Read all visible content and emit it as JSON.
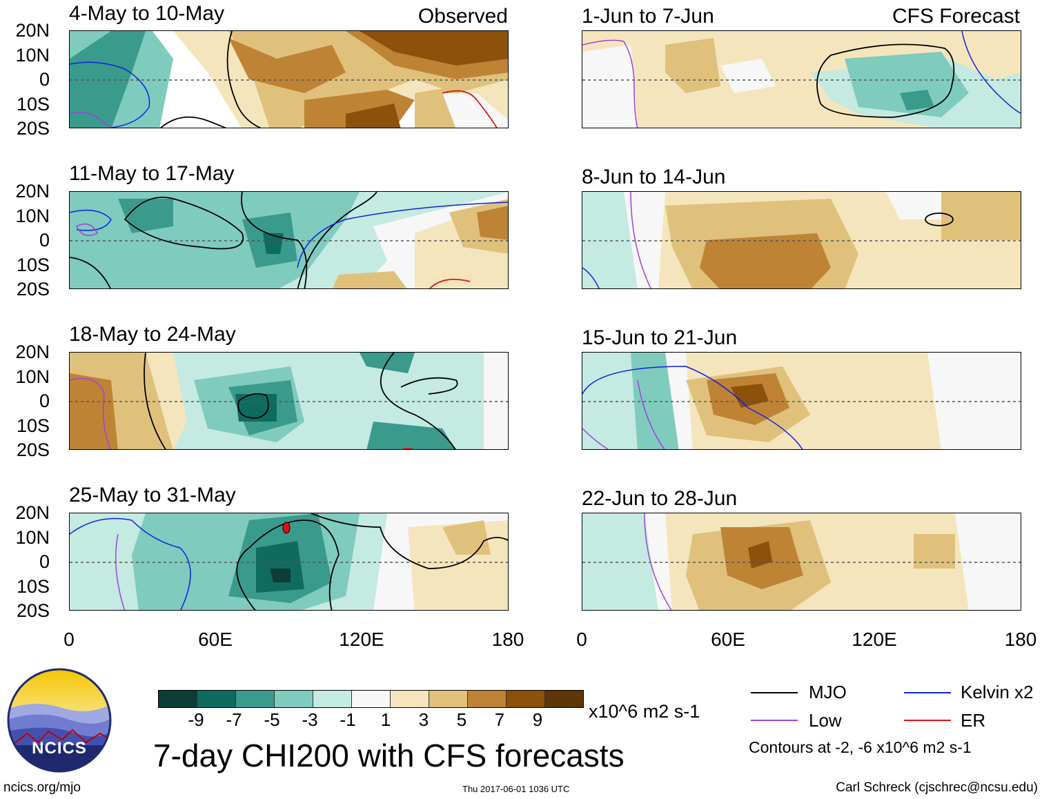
{
  "panels": [
    {
      "title": "4-May to 10-May",
      "label": "Observed"
    },
    {
      "title": "1-Jun to 7-Jun",
      "label": "CFS Forecast"
    },
    {
      "title": "11-May to 17-May",
      "label": ""
    },
    {
      "title": "8-Jun to 14-Jun",
      "label": ""
    },
    {
      "title": "18-May to 24-May",
      "label": ""
    },
    {
      "title": "15-Jun to 21-Jun",
      "label": ""
    },
    {
      "title": "25-May to 31-May",
      "label": ""
    },
    {
      "title": "22-Jun to 28-Jun",
      "label": ""
    }
  ],
  "lat_labels": [
    "20N",
    "10N",
    "0",
    "10S",
    "20S"
  ],
  "lon_labels": [
    "0",
    "60E",
    "120E",
    "180"
  ],
  "colorbar": {
    "colors": [
      "#0d3d36",
      "#0f6b60",
      "#3a9a8c",
      "#7fcbbd",
      "#c4eae1",
      "#f7f7f7",
      "#f5e5bd",
      "#dfc17c",
      "#bf8336",
      "#8c510a",
      "#5e3507"
    ],
    "ticks": [
      "-9",
      "-7",
      "-5",
      "-3",
      "-1",
      "1",
      "3",
      "5",
      "7",
      "9"
    ],
    "units": "x10^6 m2 s-1"
  },
  "main_title": "7-day CHI200 with CFS forecasts",
  "legend": {
    "items": [
      {
        "name": "MJO",
        "color": "#000000"
      },
      {
        "name": "Kelvin x2",
        "color": "#1020e0"
      },
      {
        "name": "Low",
        "color": "#a040e0"
      },
      {
        "name": "ER",
        "color": "#e01010"
      }
    ],
    "note": "Contours at -2, -6 x10^6 m2 s-1"
  },
  "logo_text": "NCICS",
  "footer": {
    "url": "ncics.org/mjo",
    "timestamp": "Thu 2017-06-01 1036 UTC",
    "credit": "Carl Schreck (cjschrec@ncsu.edu)"
  }
}
